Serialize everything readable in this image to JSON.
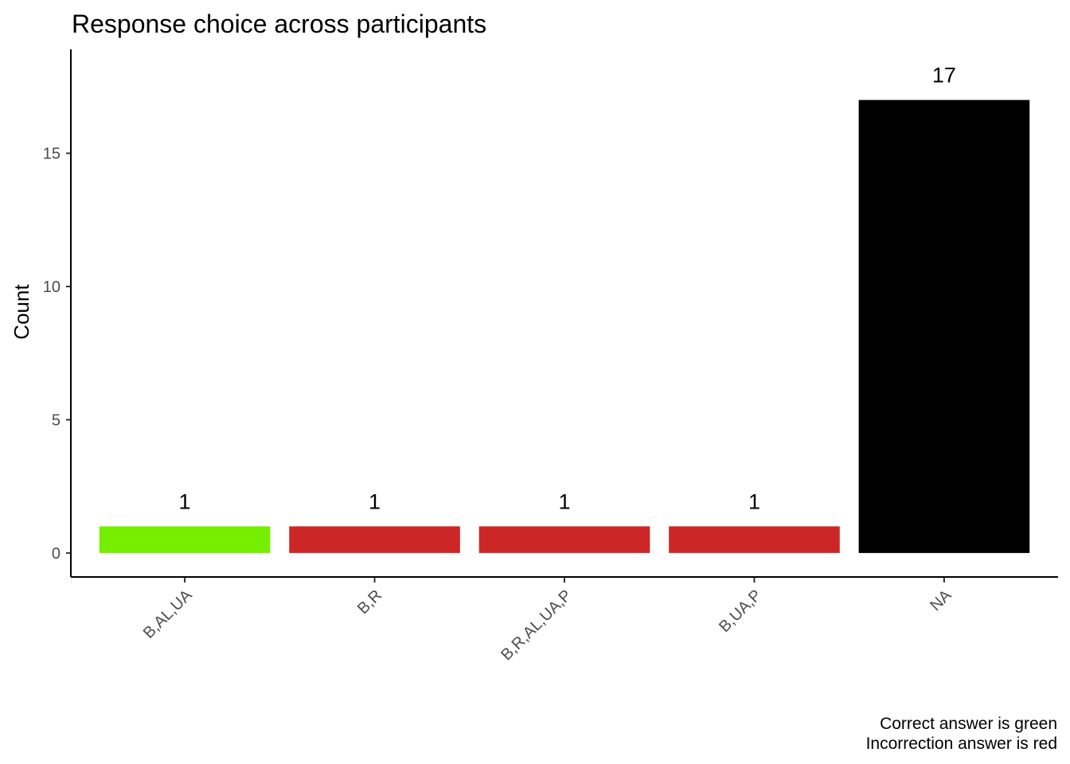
{
  "chart_data": {
    "type": "bar",
    "title": "Response choice across participants",
    "xlabel": "",
    "ylabel": "Count",
    "categories": [
      "B,AL,UA",
      "B,R",
      "B,R,AL,UA,P",
      "B,UA,P",
      "NA"
    ],
    "values": [
      1,
      1,
      1,
      1,
      17
    ],
    "bar_colors": [
      "#76ee00",
      "#cd2626",
      "#cd2626",
      "#cd2626",
      "#000000"
    ],
    "data_labels": [
      "1",
      "1",
      "1",
      "1",
      "17"
    ],
    "yticks": [
      0,
      5,
      10,
      15
    ],
    "ytick_labels": [
      "0",
      "5",
      "10",
      "15"
    ],
    "ylim": [
      -0.9,
      18.9
    ],
    "grid": false,
    "legend": "none",
    "caption": [
      "Correct answer is green",
      "Incorrection answer is red"
    ]
  }
}
